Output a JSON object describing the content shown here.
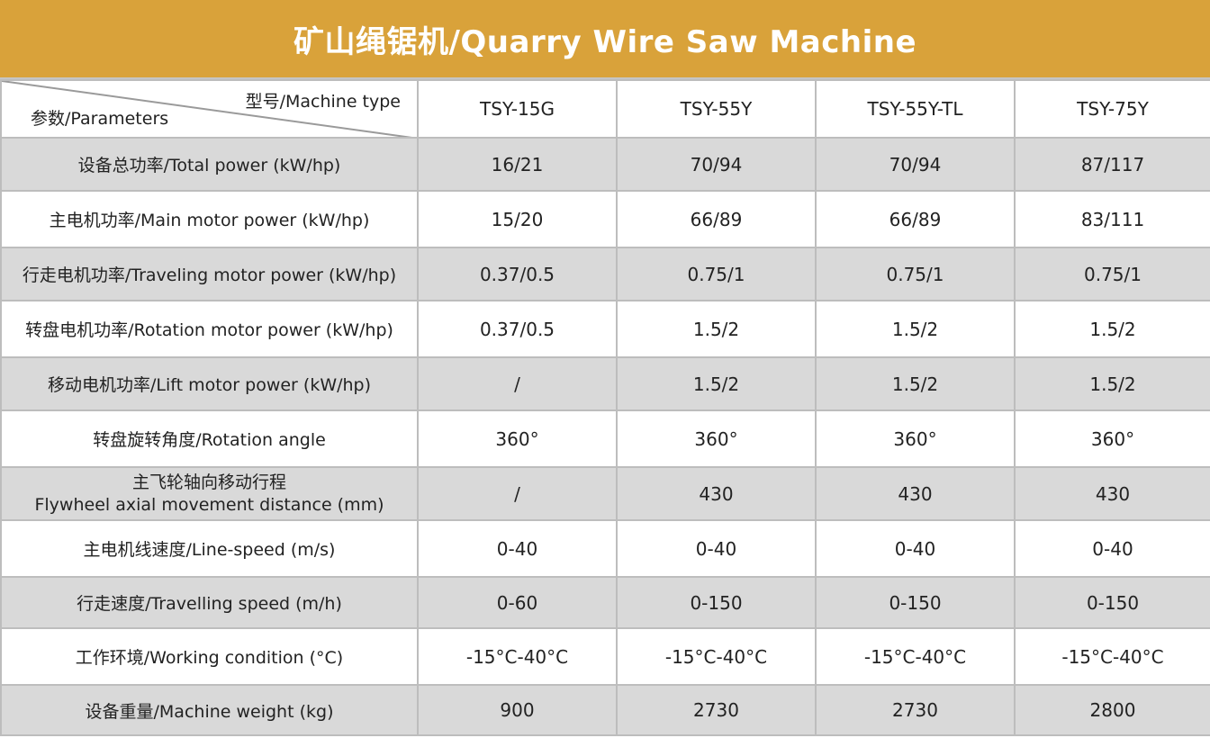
{
  "title": "矿山绳锯机/Quarry Wire Saw Machine",
  "header": {
    "machine_type_label": "型号/Machine type",
    "parameters_label": "参数/Parameters",
    "models": [
      "TSY-15G",
      "TSY-55Y",
      "TSY-55Y-TL",
      "TSY-75Y"
    ]
  },
  "rows": [
    {
      "param": "设备总功率/Total power (kW/hp)",
      "values": [
        "16/21",
        "70/94",
        "70/94",
        "87/117"
      ]
    },
    {
      "param": "主电机功率/Main motor power (kW/hp)",
      "values": [
        "15/20",
        "66/89",
        "66/89",
        "83/111"
      ]
    },
    {
      "param": "行走电机功率/Traveling motor power (kW/hp)",
      "values": [
        "0.37/0.5",
        "0.75/1",
        "0.75/1",
        "0.75/1"
      ]
    },
    {
      "param": "转盘电机功率/Rotation motor power (kW/hp)",
      "values": [
        "0.37/0.5",
        "1.5/2",
        "1.5/2",
        "1.5/2"
      ]
    },
    {
      "param": "移动电机功率/Lift motor power (kW/hp)",
      "values": [
        "/",
        "1.5/2",
        "1.5/2",
        "1.5/2"
      ]
    },
    {
      "param": "转盘旋转角度/Rotation angle",
      "values": [
        "360°",
        "360°",
        "360°",
        "360°"
      ]
    },
    {
      "param_line1": "主飞轮轴向移动行程",
      "param_line2": "Flywheel axial movement distance (mm)",
      "values": [
        "/",
        "430",
        "430",
        "430"
      ]
    },
    {
      "param": "主电机线速度/Line-speed (m/s)",
      "values": [
        "0-40",
        "0-40",
        "0-40",
        "0-40"
      ]
    },
    {
      "param": "行走速度/Travelling speed (m/h)",
      "values": [
        "0-60",
        "0-150",
        "0-150",
        "0-150"
      ]
    },
    {
      "param": "工作环境/Working condition (°C)",
      "values": [
        "-15°C-40°C",
        "-15°C-40°C",
        "-15°C-40°C",
        "-15°C-40°C"
      ]
    },
    {
      "param": "设备重量/Machine weight (kg)",
      "values": [
        "900",
        "2730",
        "2730",
        "2800"
      ]
    }
  ],
  "colors": {
    "title_bg": "#d9a23a",
    "row_shade": "#d9d9d9",
    "border": "#bdbdbd"
  }
}
